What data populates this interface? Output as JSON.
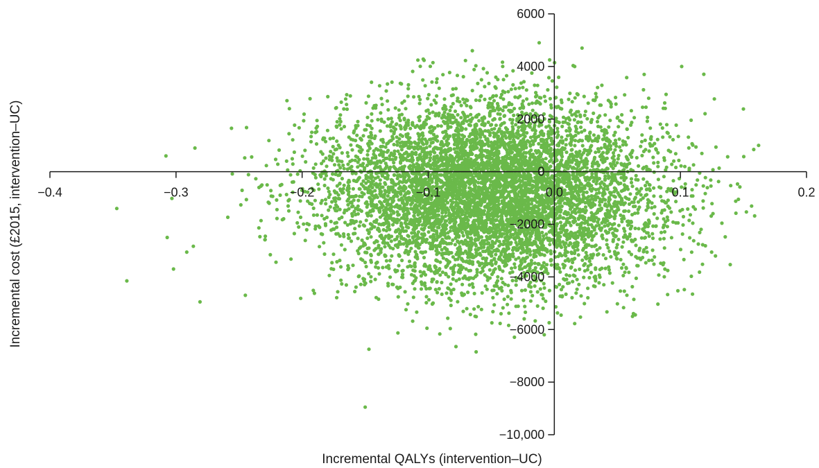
{
  "chart_data": {
    "type": "scatter",
    "title": "",
    "xlabel": "Incremental QALYs (intervention–UC)",
    "ylabel": "Incremental cost (£2015, intervention–UC)",
    "xlim": [
      -0.4,
      0.2
    ],
    "ylim": [
      -10000,
      6000
    ],
    "x_ticks": [
      -0.4,
      -0.3,
      -0.2,
      -0.1,
      0.0,
      0.1,
      0.2
    ],
    "x_tick_labels": [
      "−0.4",
      "−0.3",
      "−0.2",
      "−0.1",
      "0.0",
      "0.1",
      "0.2"
    ],
    "y_ticks": [
      6000,
      4000,
      2000,
      0,
      -2000,
      -4000,
      -6000,
      -8000,
      -10000
    ],
    "y_tick_labels": [
      "6000",
      "4000",
      "2000",
      "0",
      "−2000",
      "−4000",
      "−6000",
      "−8000",
      "−10,000"
    ],
    "grid": false,
    "legend": "none",
    "marker_color": "#6ab94a",
    "notable_points": [
      {
        "x": -0.347,
        "y": -1400
      },
      {
        "x": -0.339,
        "y": -4150
      },
      {
        "x": -0.308,
        "y": 600
      },
      {
        "x": -0.307,
        "y": -2500
      },
      {
        "x": -0.302,
        "y": -3700
      },
      {
        "x": -0.285,
        "y": 900
      },
      {
        "x": -0.281,
        "y": -4950
      },
      {
        "x": -0.256,
        "y": 1650
      },
      {
        "x": -0.245,
        "y": -4700
      },
      {
        "x": -0.212,
        "y": 2700
      },
      {
        "x": -0.15,
        "y": -8950
      },
      {
        "x": -0.145,
        "y": 3400
      },
      {
        "x": -0.147,
        "y": -6750
      },
      {
        "x": -0.101,
        "y": -5950
      },
      {
        "x": -0.078,
        "y": -6650
      },
      {
        "x": -0.065,
        "y": 4600
      },
      {
        "x": -0.062,
        "y": -6850
      },
      {
        "x": -0.012,
        "y": 4900
      },
      {
        "x": -0.008,
        "y": -6200
      },
      {
        "x": 0.022,
        "y": 4700
      },
      {
        "x": 0.062,
        "y": -5500
      },
      {
        "x": 0.101,
        "y": 4000
      },
      {
        "x": 0.162,
        "y": 1000
      },
      {
        "x": 0.146,
        "y": -1050
      }
    ],
    "bulk_distribution": {
      "n_points": 7000,
      "x_mean": -0.05,
      "x_sd": 0.065,
      "y_mean": -800,
      "y_sd": 1750
    }
  }
}
